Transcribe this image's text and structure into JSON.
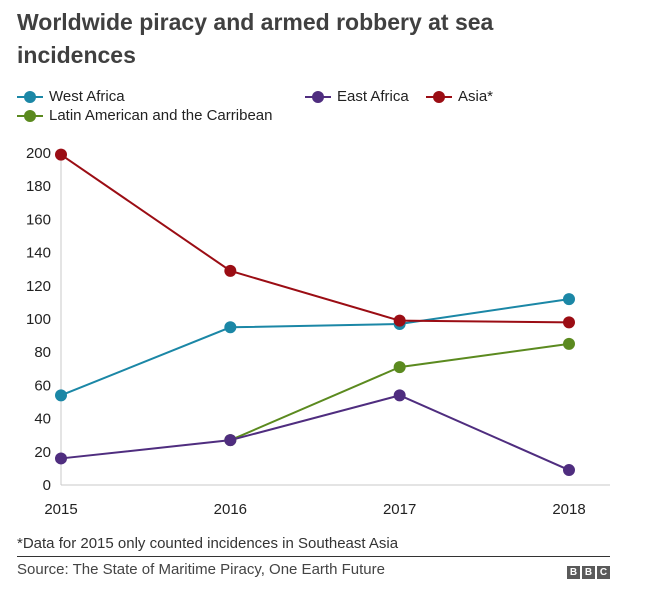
{
  "chart_data": {
    "type": "line",
    "title": "Worldwide piracy and armed robbery at sea incidences",
    "xlabel": "",
    "ylabel": "",
    "x": [
      "2015",
      "2016",
      "2017",
      "2018"
    ],
    "ylim": [
      0,
      200
    ],
    "yticks": [
      "0",
      "20",
      "40",
      "60",
      "80",
      "100",
      "120",
      "140",
      "160",
      "180",
      "200"
    ],
    "grid": false,
    "legend_placement": "top-left",
    "series": [
      {
        "name": "West Africa",
        "color": "#1b87a6",
        "values": [
          54,
          95,
          97,
          112
        ]
      },
      {
        "name": "Latin American and the Carribean",
        "color": "#5b8a1f",
        "values": [
          null,
          27,
          71,
          85
        ]
      },
      {
        "name": "East Africa",
        "color": "#4f2d7f",
        "values": [
          16,
          27,
          54,
          9
        ]
      },
      {
        "name": "Asia*",
        "color": "#9b0d14",
        "values": [
          199,
          129,
          99,
          98
        ]
      }
    ],
    "annotation": "*Data for 2015 only counted incidences in Southeast Asia",
    "source": "Source: The State of Maritime Piracy, One Earth Future"
  },
  "footer": {
    "logo": [
      "B",
      "B",
      "C"
    ]
  }
}
